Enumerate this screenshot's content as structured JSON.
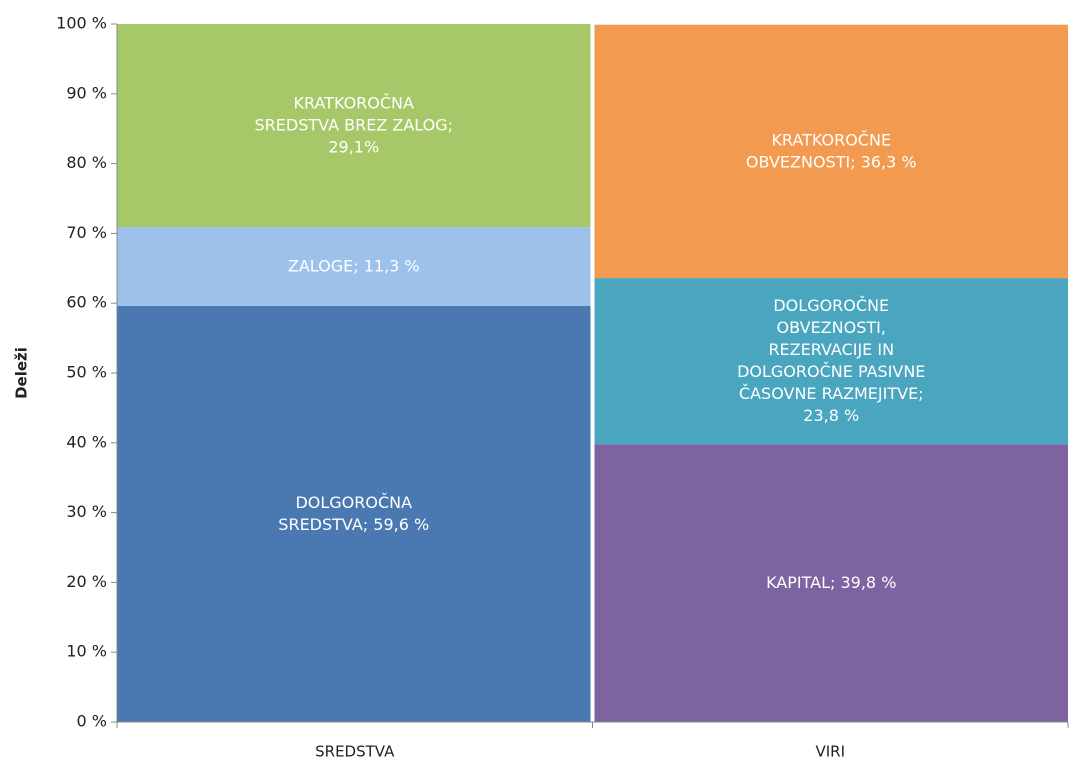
{
  "chart_data": {
    "type": "stacked_bar",
    "y_label": "Deleži",
    "categories": [
      "SREDSTVA",
      "VIRI"
    ],
    "series": [
      {
        "color": "#4a78b0",
        "values": [
          59.6,
          null
        ],
        "value_labels": [
          "DOLGOROČNA\nSREDSTVA; 59,6 %",
          null
        ]
      },
      {
        "color": "#9dc1eb",
        "values": [
          11.3,
          null
        ],
        "value_labels": [
          "ZALOGE; 11,3 %",
          null
        ]
      },
      {
        "color": "#a6c868",
        "values": [
          29.1,
          null
        ],
        "value_labels": [
          "KRATKOROČNA\nSREDSTVA BREZ ZALOG;\n29,1%",
          null
        ]
      },
      {
        "color": "#7d63a0",
        "values": [
          null,
          39.8
        ],
        "value_labels": [
          null,
          "KAPITAL; 39,8 %"
        ]
      },
      {
        "color": "#4aa6bf",
        "values": [
          null,
          23.8
        ],
        "value_labels": [
          null,
          "DOLGOROČNE\nOBVEZNOSTI,\nREZERVACIJE IN\nDOLGOROČNE PASIVNE\nČASOVNE RAZMEJITVE;\n23,8 %"
        ]
      },
      {
        "color": "#f29b50",
        "values": [
          null,
          36.3
        ],
        "value_labels": [
          null,
          "KRATKOROČNE\nOBVEZNOSTI; 36,3 %"
        ]
      }
    ],
    "ylim": [
      0,
      100
    ],
    "yticks": [
      {
        "value": 0,
        "label": "0 %"
      },
      {
        "value": 10,
        "label": "10 %"
      },
      {
        "value": 20,
        "label": "20 %"
      },
      {
        "value": 30,
        "label": "30 %"
      },
      {
        "value": 40,
        "label": "40 %"
      },
      {
        "value": 50,
        "label": "50 %"
      },
      {
        "value": 60,
        "label": "60 %"
      },
      {
        "value": 70,
        "label": "70 %"
      },
      {
        "value": 80,
        "label": "80 %"
      },
      {
        "value": 90,
        "label": "90 %"
      },
      {
        "value": 100,
        "label": "100 %"
      }
    ]
  }
}
